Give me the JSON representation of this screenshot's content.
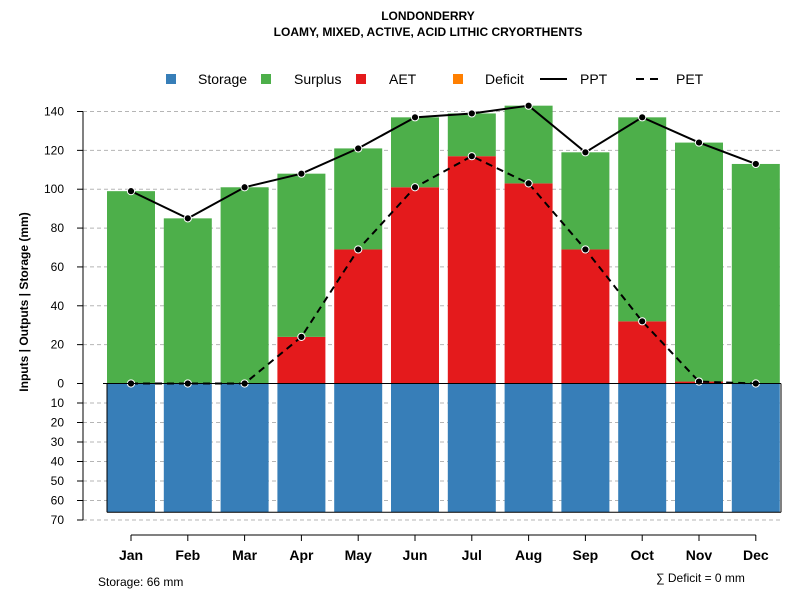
{
  "chart_data": {
    "type": "bar",
    "title": "LONDONDERRY",
    "subtitle": "LOAMY, MIXED, ACTIVE, ACID LITHIC CRYORTHENTS",
    "ylabel": "Inputs | Outputs | Storage    (mm)",
    "categories": [
      "Jan",
      "Feb",
      "Mar",
      "Apr",
      "May",
      "Jun",
      "Jul",
      "Aug",
      "Sep",
      "Oct",
      "Nov",
      "Dec"
    ],
    "ylim": [
      -70,
      150
    ],
    "yticks_top": [
      0,
      20,
      40,
      60,
      80,
      100,
      120,
      140
    ],
    "yticks_bottom": [
      10,
      20,
      30,
      40,
      50,
      60,
      70
    ],
    "series": [
      {
        "name": "Storage",
        "kind": "bar",
        "color": "#377EB8",
        "values": [
          66,
          66,
          66,
          66,
          66,
          66,
          66,
          66,
          66,
          66,
          66,
          66
        ]
      },
      {
        "name": "Surplus",
        "kind": "bar",
        "color": "#4DAF4A",
        "values": [
          99,
          85,
          101,
          84,
          52,
          36,
          22,
          40,
          50,
          105,
          123,
          113
        ]
      },
      {
        "name": "AET",
        "kind": "bar",
        "color": "#E41A1C",
        "values": [
          0,
          0,
          0,
          24,
          69,
          101,
          117,
          103,
          69,
          32,
          1,
          0
        ]
      },
      {
        "name": "Deficit",
        "kind": "bar",
        "color": "#FF7F00",
        "values": [
          0,
          0,
          0,
          0,
          0,
          0,
          0,
          0,
          0,
          0,
          0,
          0
        ]
      },
      {
        "name": "PPT",
        "kind": "line",
        "style": "solid",
        "color": "#000000",
        "values": [
          99,
          85,
          101,
          108,
          121,
          137,
          139,
          143,
          119,
          137,
          124,
          113
        ]
      },
      {
        "name": "PET",
        "kind": "line",
        "style": "dashed",
        "color": "#000000",
        "values": [
          0,
          0,
          0,
          24,
          69,
          101,
          117,
          103,
          69,
          32,
          1,
          0
        ]
      }
    ],
    "legend": [
      "Storage",
      "Surplus",
      "AET",
      "Deficit",
      "PPT",
      "PET"
    ],
    "grid": true,
    "annotations": {
      "storage_note": "Storage: 66 mm",
      "deficit_note": "∑ Deficit = 0 mm"
    }
  }
}
